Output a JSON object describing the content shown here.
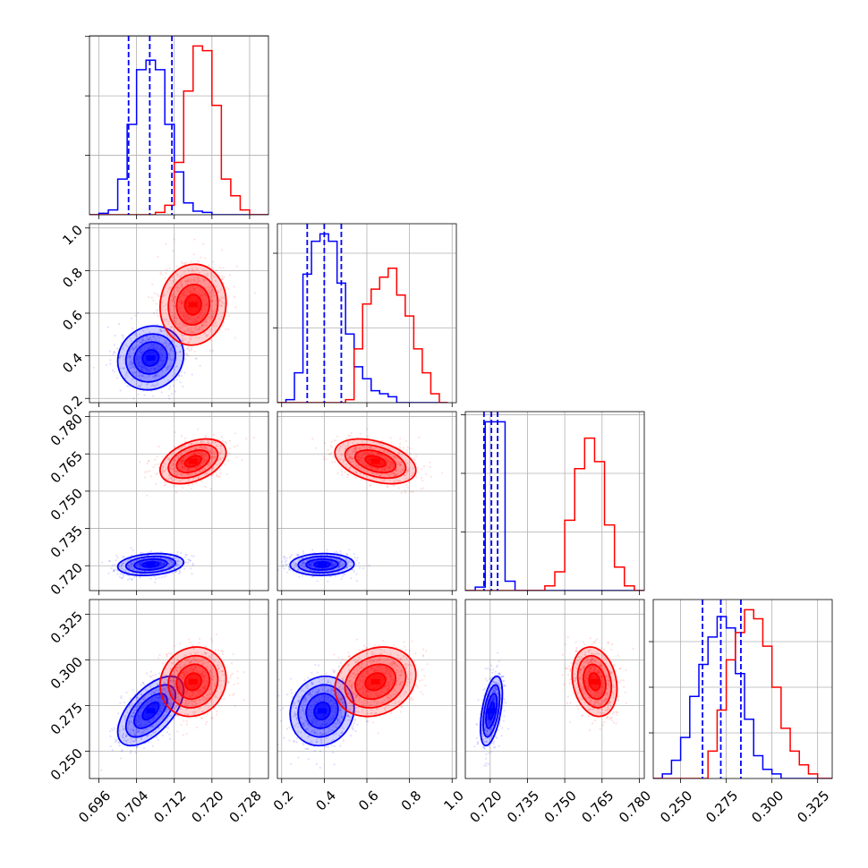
{
  "chart_data": {
    "type": "corner",
    "grid": true,
    "colors": {
      "a": "#0000ff",
      "b": "#ff0000"
    },
    "parameters": [
      {
        "range": [
          0.694,
          0.732
        ],
        "ticks": [
          0.696,
          0.704,
          0.712,
          0.72,
          0.728
        ],
        "tick_labels": [
          "0.696",
          "0.704",
          "0.712",
          "0.720",
          "0.728"
        ]
      },
      {
        "range": [
          0.18,
          1.02
        ],
        "ticks": [
          0.2,
          0.4,
          0.6,
          0.8,
          1.0
        ],
        "tick_labels": [
          "0.2",
          "0.4",
          "0.6",
          "0.8",
          "1.0"
        ]
      },
      {
        "range": [
          0.71,
          0.782
        ],
        "ticks": [
          0.72,
          0.735,
          0.75,
          0.765,
          0.78
        ],
        "tick_labels": [
          "0.720",
          "0.735",
          "0.750",
          "0.765",
          "0.780"
        ]
      },
      {
        "range": [
          0.235,
          0.333
        ],
        "ticks": [
          0.25,
          0.275,
          0.3,
          0.325
        ],
        "tick_labels": [
          "0.250",
          "0.275",
          "0.300",
          "0.325"
        ]
      }
    ],
    "series": [
      {
        "key": "a",
        "means": [
          0.707,
          0.39,
          0.7205,
          0.272
        ],
        "sds": [
          0.0035,
          0.075,
          0.0022,
          0.0095
        ]
      },
      {
        "key": "b",
        "means": [
          0.716,
          0.64,
          0.762,
          0.288
        ],
        "sds": [
          0.0035,
          0.095,
          0.0045,
          0.0095
        ]
      }
    ],
    "correlations": {
      "a": [
        [
          1,
          0.1,
          0.2,
          0.6
        ],
        [
          0.1,
          1,
          0.05,
          0.1
        ],
        [
          0.2,
          0.05,
          1,
          0.5
        ],
        [
          0.6,
          0.1,
          0.5,
          1
        ]
      ],
      "b": [
        [
          1,
          0.05,
          0.4,
          0.1
        ],
        [
          0.05,
          1,
          -0.4,
          0.2
        ],
        [
          0.4,
          -0.4,
          1,
          -0.2
        ],
        [
          0.1,
          0.2,
          -0.2,
          1
        ]
      ]
    },
    "quantile_lines": [
      [
        0.7023,
        0.7068,
        0.7115
      ],
      [
        0.32,
        0.4,
        0.48
      ],
      [
        0.7175,
        0.7205,
        0.723
      ],
      [
        0.262,
        0.272,
        0.283
      ]
    ],
    "histograms": [
      {
        "edges": [
          0.694,
          0.696,
          0.698,
          0.7,
          0.702,
          0.704,
          0.706,
          0.708,
          0.71,
          0.712,
          0.714,
          0.716,
          0.718,
          0.72,
          0.722,
          0.724,
          0.726,
          0.728,
          0.73,
          0.732
        ],
        "a": [
          0,
          60,
          200,
          1500,
          3800,
          6100,
          6500,
          6100,
          3800,
          1800,
          500,
          150,
          100,
          0,
          0,
          0,
          0,
          0,
          0
        ],
        "b": [
          0,
          0,
          0,
          0,
          0,
          0,
          0,
          100,
          400,
          2200,
          5200,
          7100,
          6900,
          4600,
          1500,
          800,
          200,
          0,
          0
        ]
      },
      {
        "edges": [
          0.18,
          0.22,
          0.26,
          0.3,
          0.34,
          0.38,
          0.42,
          0.46,
          0.5,
          0.54,
          0.58,
          0.62,
          0.66,
          0.7,
          0.74,
          0.78,
          0.82,
          0.86,
          0.9,
          0.94,
          0.98
        ],
        "a": [
          0,
          100,
          1000,
          4300,
          5400,
          5650,
          5400,
          4000,
          2300,
          1200,
          800,
          400,
          300,
          200,
          0,
          0,
          0,
          0,
          0,
          0
        ],
        "b": [
          0,
          0,
          0,
          0,
          0,
          0,
          0,
          0,
          100,
          1800,
          3300,
          3800,
          4200,
          4500,
          3600,
          2900,
          1800,
          1000,
          300,
          0
        ]
      },
      {
        "edges": [
          0.71,
          0.714,
          0.718,
          0.722,
          0.726,
          0.73,
          0.734,
          0.738,
          0.742,
          0.746,
          0.75,
          0.754,
          0.758,
          0.762,
          0.766,
          0.77,
          0.774,
          0.778,
          0.782
        ],
        "a": [
          0,
          150,
          7200,
          7200,
          400,
          0,
          0,
          0,
          0,
          0,
          0,
          0,
          0,
          0,
          0,
          0,
          0,
          0
        ],
        "b": [
          0,
          0,
          0,
          0,
          0,
          0,
          0,
          0,
          200,
          800,
          3000,
          5200,
          6500,
          5500,
          2800,
          1000,
          200,
          0
        ]
      },
      {
        "edges": [
          0.235,
          0.24,
          0.245,
          0.25,
          0.255,
          0.26,
          0.265,
          0.27,
          0.275,
          0.28,
          0.285,
          0.29,
          0.295,
          0.3,
          0.305,
          0.31,
          0.315,
          0.32,
          0.325,
          0.33,
          0.333
        ],
        "a": [
          0,
          100,
          400,
          900,
          1800,
          2500,
          3100,
          3550,
          3300,
          2300,
          1300,
          500,
          200,
          100,
          0,
          0,
          0,
          0,
          0,
          0
        ],
        "b": [
          0,
          0,
          0,
          0,
          0,
          0,
          600,
          1500,
          2600,
          3200,
          3700,
          3500,
          2900,
          2000,
          1100,
          600,
          300,
          100,
          0,
          0
        ]
      }
    ]
  }
}
